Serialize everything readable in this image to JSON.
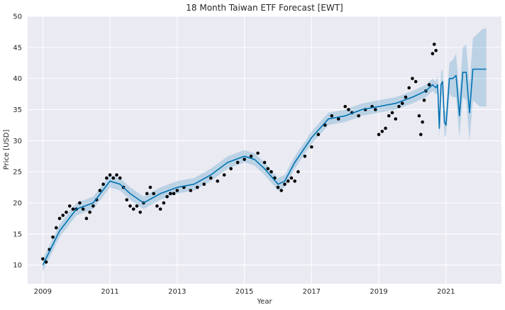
{
  "chart_data": {
    "type": "scatter",
    "title": "18 Month Taiwan ETF Forecast [EWT]",
    "xlabel": "Year",
    "ylabel": "Price [USD]",
    "xlim": [
      2008.55,
      2022.65
    ],
    "ylim": [
      7,
      50
    ],
    "x_ticks": [
      2009,
      2011,
      2013,
      2015,
      2017,
      2019,
      2021
    ],
    "x_tick_labels": [
      "2009",
      "2011",
      "2013",
      "2015",
      "2017",
      "2019",
      "2021"
    ],
    "y_ticks": [
      10,
      15,
      20,
      25,
      30,
      35,
      40,
      45,
      50
    ],
    "y_tick_labels": [
      "10",
      "15",
      "20",
      "25",
      "30",
      "35",
      "40",
      "45",
      "50"
    ],
    "grid": true,
    "colors": {
      "background": "#eaeaf2",
      "grid": "#ffffff",
      "actual": "#000000",
      "forecast": "#0072b2",
      "band": "#0072b2"
    },
    "series": [
      {
        "kind": "observed",
        "x": [
          2009.0,
          2009.1,
          2009.2,
          2009.3,
          2009.4,
          2009.5,
          2009.6,
          2009.7,
          2009.8,
          2009.9,
          2010.0,
          2010.1,
          2010.2,
          2010.3,
          2010.4,
          2010.5,
          2010.6,
          2010.7,
          2010.8,
          2010.9,
          2011.0,
          2011.1,
          2011.2,
          2011.3,
          2011.4,
          2011.5,
          2011.6,
          2011.7,
          2011.8,
          2011.9,
          2012.0,
          2012.1,
          2012.2,
          2012.3,
          2012.4,
          2012.5,
          2012.6,
          2012.7,
          2012.8,
          2012.9,
          2013.0,
          2013.2,
          2013.4,
          2013.6,
          2013.8,
          2014.0,
          2014.2,
          2014.4,
          2014.6,
          2014.8,
          2015.0,
          2015.2,
          2015.4,
          2015.6,
          2015.7,
          2015.8,
          2015.9,
          2016.0,
          2016.1,
          2016.2,
          2016.3,
          2016.4,
          2016.5,
          2016.6,
          2016.8,
          2017.0,
          2017.2,
          2017.4,
          2017.6,
          2017.8,
          2018.0,
          2018.1,
          2018.2,
          2018.4,
          2018.6,
          2018.8,
          2018.9,
          2019.0,
          2019.1,
          2019.2,
          2019.3,
          2019.4,
          2019.5,
          2019.6,
          2019.7,
          2019.8,
          2019.9,
          2020.0,
          2020.1,
          2020.2,
          2020.25,
          2020.3,
          2020.35,
          2020.4,
          2020.5,
          2020.6,
          2020.65,
          2020.7
        ],
        "y": [
          11.0,
          10.5,
          12.5,
          14.5,
          16.0,
          17.5,
          18.0,
          18.5,
          19.5,
          19.0,
          19.0,
          20.0,
          19.0,
          17.5,
          18.5,
          19.5,
          20.5,
          22.0,
          23.0,
          24.0,
          24.5,
          24.0,
          24.5,
          24.0,
          22.5,
          20.5,
          19.5,
          19.0,
          19.5,
          18.5,
          20.0,
          21.5,
          22.5,
          21.5,
          19.5,
          19.0,
          20.0,
          21.0,
          21.5,
          21.5,
          22.0,
          22.5,
          22.0,
          22.5,
          23.0,
          24.0,
          23.5,
          24.5,
          25.5,
          26.5,
          27.0,
          27.5,
          28.0,
          26.5,
          25.5,
          25.0,
          24.0,
          22.5,
          22.0,
          23.0,
          23.5,
          24.0,
          23.5,
          25.0,
          27.5,
          29.0,
          31.0,
          32.5,
          34.0,
          33.5,
          35.5,
          35.0,
          34.5,
          34.0,
          35.0,
          35.5,
          35.0,
          31.0,
          31.5,
          32.0,
          34.0,
          34.5,
          33.5,
          35.5,
          36.0,
          37.0,
          38.5,
          40.0,
          39.5,
          34.0,
          31.0,
          33.0,
          36.5,
          38.0,
          39.0,
          44.0,
          45.5,
          44.5
        ]
      },
      {
        "kind": "forecast",
        "x": [
          2009.0,
          2009.5,
          2010.0,
          2010.5,
          2011.0,
          2011.3,
          2011.6,
          2012.0,
          2012.5,
          2013.0,
          2013.5,
          2014.0,
          2014.5,
          2015.0,
          2015.3,
          2015.6,
          2016.0,
          2016.2,
          2016.5,
          2017.0,
          2017.5,
          2018.0,
          2018.5,
          2019.0,
          2019.5,
          2020.0,
          2020.4,
          2020.6,
          2020.7,
          2020.75,
          2020.8,
          2020.85,
          2020.9,
          2020.95,
          2021.0,
          2021.1,
          2021.2,
          2021.3,
          2021.4,
          2021.5,
          2021.6,
          2021.7,
          2021.8,
          2021.9,
          2022.0,
          2022.1,
          2022.2
        ],
        "y": [
          10.0,
          15.5,
          19.0,
          20.0,
          23.5,
          23.0,
          21.5,
          20.0,
          21.5,
          22.5,
          23.0,
          24.5,
          26.5,
          27.5,
          27.0,
          25.5,
          23.0,
          23.5,
          26.5,
          30.5,
          33.5,
          34.0,
          35.0,
          35.5,
          36.0,
          37.0,
          38.0,
          39.0,
          38.5,
          39.0,
          32.0,
          39.0,
          39.5,
          33.0,
          32.5,
          40.0,
          40.0,
          40.5,
          34.0,
          41.0,
          41.0,
          34.5,
          41.5,
          41.5,
          41.5,
          41.5,
          41.5
        ],
        "lower": [
          9.0,
          14.5,
          18.0,
          19.0,
          22.5,
          22.0,
          20.5,
          19.0,
          20.5,
          21.5,
          22.0,
          23.5,
          25.5,
          26.5,
          26.0,
          24.5,
          22.0,
          22.5,
          25.5,
          29.5,
          32.5,
          33.0,
          34.0,
          34.5,
          35.0,
          36.0,
          37.0,
          38.0,
          37.5,
          37.5,
          30.5,
          37.0,
          37.5,
          31.0,
          30.5,
          37.5,
          37.0,
          37.0,
          30.5,
          37.0,
          36.5,
          30.0,
          36.5,
          36.0,
          35.5,
          35.5,
          35.5
        ],
        "upper": [
          11.0,
          16.5,
          20.0,
          21.0,
          24.5,
          24.0,
          22.5,
          21.0,
          22.5,
          23.5,
          24.0,
          25.5,
          27.5,
          28.5,
          28.0,
          26.5,
          24.0,
          24.5,
          27.5,
          31.5,
          34.5,
          35.0,
          36.0,
          36.5,
          37.0,
          38.0,
          39.0,
          40.0,
          39.5,
          40.5,
          33.5,
          41.0,
          41.5,
          35.0,
          34.5,
          42.5,
          43.0,
          44.0,
          37.5,
          45.0,
          45.5,
          39.0,
          46.5,
          47.0,
          47.5,
          48.0,
          48.0
        ]
      }
    ]
  }
}
